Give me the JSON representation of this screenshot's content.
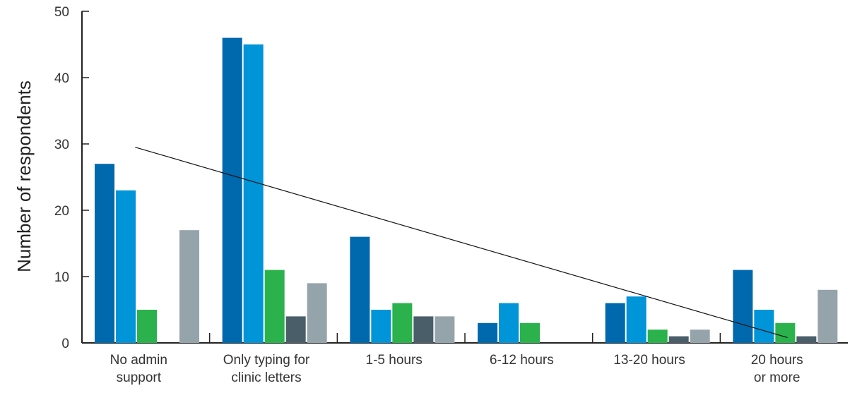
{
  "chart_data": {
    "type": "bar",
    "title": "",
    "xlabel": "",
    "ylabel": "Number of respondents",
    "ylim": [
      0,
      50
    ],
    "yticks": [
      0,
      10,
      20,
      30,
      40,
      50
    ],
    "categories": [
      [
        "No admin",
        "support"
      ],
      [
        "Only typing for",
        "clinic letters"
      ],
      [
        "1-5 hours"
      ],
      [
        "6-12 hours"
      ],
      [
        "13-20 hours"
      ],
      [
        "20 hours",
        "or more"
      ]
    ],
    "series": [
      {
        "color": "#0068ac",
        "values": [
          27,
          46,
          16,
          3,
          6,
          11
        ]
      },
      {
        "color": "#0094d9",
        "values": [
          23,
          45,
          5,
          6,
          7,
          5
        ]
      },
      {
        "color": "#2bb24c",
        "values": [
          5,
          11,
          6,
          3,
          2,
          3
        ]
      },
      {
        "color": "#4a5e6a",
        "values": [
          0,
          4,
          4,
          0,
          1,
          1
        ]
      },
      {
        "color": "#95a3aa",
        "values": [
          17,
          9,
          4,
          0,
          2,
          8
        ]
      }
    ],
    "trendline": {
      "start": {
        "category_index": 0,
        "value": 29.5
      },
      "end": {
        "category_index": 5,
        "value": 0.8
      }
    },
    "grid": false,
    "legend": "none"
  }
}
